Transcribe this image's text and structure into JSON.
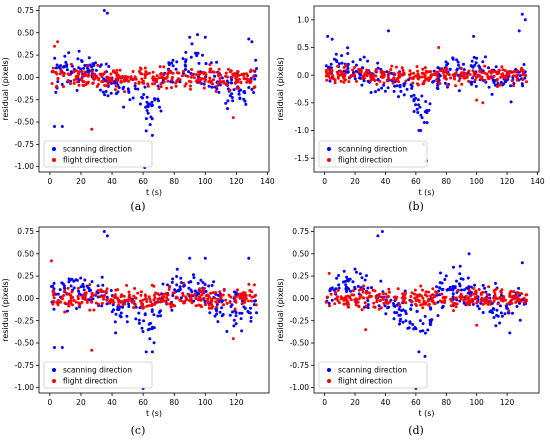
{
  "figure": {
    "captions": [
      "(a)",
      "(b)",
      "(c)",
      "(d)"
    ],
    "colors": {
      "scanning": "#0000ff",
      "flight": "#ff0000"
    }
  },
  "chart_data": [
    {
      "type": "scatter",
      "panel": "(a)",
      "xlabel": "t (s)",
      "ylabel": "residual (pixels)",
      "xlim": [
        -7,
        141
      ],
      "ylim": [
        -1.06,
        0.8
      ],
      "xticks": [
        0,
        20,
        40,
        60,
        80,
        100,
        120,
        140
      ],
      "yticks": [
        -1.0,
        -0.75,
        -0.5,
        -0.25,
        0.0,
        0.25,
        0.5,
        0.75
      ],
      "legend": {
        "position": "bottom-left",
        "entries": [
          "scanning direction",
          "flight direction"
        ]
      },
      "series": [
        {
          "name": "scanning direction",
          "color": "#0000ff",
          "amp": 0.2,
          "dip": -0.3,
          "points": [
            [
              35,
              0.75
            ],
            [
              37,
              0.72
            ],
            [
              3,
              -0.55
            ],
            [
              8,
              -0.55
            ],
            [
              62,
              -0.6
            ],
            [
              66,
              -0.65
            ],
            [
              61,
              -1.01
            ],
            [
              90,
              0.45
            ],
            [
              95,
              0.48
            ],
            [
              100,
              0.45
            ],
            [
              128,
              0.43
            ],
            [
              130,
              0.4
            ]
          ]
        },
        {
          "name": "flight direction",
          "color": "#ff0000",
          "amp": 0.12,
          "dip": 0,
          "points": [
            [
              5,
              0.4
            ],
            [
              3,
              0.35
            ],
            [
              27,
              -0.58
            ],
            [
              118,
              -0.45
            ]
          ]
        }
      ]
    },
    {
      "type": "scatter",
      "panel": "(b)",
      "xlabel": "t (s)",
      "ylabel": "residual (pixels)",
      "xlim": [
        -7,
        141
      ],
      "ylim": [
        -1.75,
        1.25
      ],
      "xticks": [
        0,
        20,
        40,
        60,
        80,
        100,
        120,
        140
      ],
      "yticks": [
        -1.5,
        -1.0,
        -0.5,
        0.0,
        0.5,
        1.0
      ],
      "legend": {
        "position": "bottom-left",
        "entries": [
          "scanning direction",
          "flight direction"
        ]
      },
      "series": [
        {
          "name": "scanning direction",
          "color": "#0000ff",
          "amp": 0.3,
          "dip": -0.7,
          "points": [
            [
              2,
              0.7
            ],
            [
              5,
              0.65
            ],
            [
              42,
              0.8
            ],
            [
              65,
              -1.25
            ],
            [
              67,
              -1.55
            ],
            [
              62,
              -1.0
            ],
            [
              130,
              1.1
            ],
            [
              132,
              1.0
            ],
            [
              128,
              0.8
            ],
            [
              98,
              0.7
            ]
          ]
        },
        {
          "name": "flight direction",
          "color": "#ff0000",
          "amp": 0.15,
          "dip": 0,
          "points": [
            [
              104,
              -0.5
            ],
            [
              100,
              -0.45
            ],
            [
              75,
              0.5
            ]
          ]
        }
      ]
    },
    {
      "type": "scatter",
      "panel": "(c)",
      "xlabel": "t (s)",
      "ylabel": "residual (pixels)",
      "xlim": [
        -7,
        141
      ],
      "ylim": [
        -1.06,
        0.8
      ],
      "xticks": [
        0,
        20,
        40,
        60,
        80,
        100,
        120
      ],
      "yticks": [
        -1.0,
        -0.75,
        -0.5,
        -0.25,
        0.0,
        0.25,
        0.5,
        0.75
      ],
      "legend": {
        "position": "bottom-left",
        "entries": [
          "scanning direction",
          "flight direction"
        ]
      },
      "series": [
        {
          "name": "scanning direction",
          "color": "#0000ff",
          "amp": 0.2,
          "dip": -0.3,
          "points": [
            [
              35,
              0.75
            ],
            [
              37,
              0.7
            ],
            [
              3,
              -0.55
            ],
            [
              8,
              -0.55
            ],
            [
              62,
              -0.6
            ],
            [
              66,
              -0.6
            ],
            [
              60,
              -1.01
            ],
            [
              90,
              0.45
            ],
            [
              100,
              0.45
            ],
            [
              128,
              0.45
            ]
          ]
        },
        {
          "name": "flight direction",
          "color": "#ff0000",
          "amp": 0.12,
          "dip": 0,
          "points": [
            [
              1,
              0.42
            ],
            [
              27,
              -0.58
            ],
            [
              118,
              -0.45
            ]
          ]
        }
      ]
    },
    {
      "type": "scatter",
      "panel": "(d)",
      "xlabel": "t (s)",
      "ylabel": "residual (pixels)",
      "xlim": [
        -7,
        141
      ],
      "ylim": [
        -1.06,
        0.8
      ],
      "xticks": [
        0,
        20,
        40,
        60,
        80,
        100,
        120
      ],
      "yticks": [
        -1.0,
        -0.75,
        -0.5,
        -0.25,
        0.0,
        0.25,
        0.5,
        0.75
      ],
      "legend": {
        "position": "bottom-left",
        "entries": [
          "scanning direction",
          "flight direction"
        ]
      },
      "series": [
        {
          "name": "scanning direction",
          "color": "#0000ff",
          "amp": 0.2,
          "dip": -0.3,
          "points": [
            [
              38,
              0.75
            ],
            [
              35,
              0.7
            ],
            [
              62,
              -0.6
            ],
            [
              66,
              -0.65
            ],
            [
              60,
              -1.01
            ],
            [
              95,
              0.5
            ],
            [
              130,
              0.4
            ]
          ]
        },
        {
          "name": "flight direction",
          "color": "#ff0000",
          "amp": 0.1,
          "dip": 0,
          "points": [
            [
              3,
              0.28
            ],
            [
              27,
              -0.35
            ],
            [
              100,
              -0.3
            ]
          ]
        }
      ]
    }
  ]
}
